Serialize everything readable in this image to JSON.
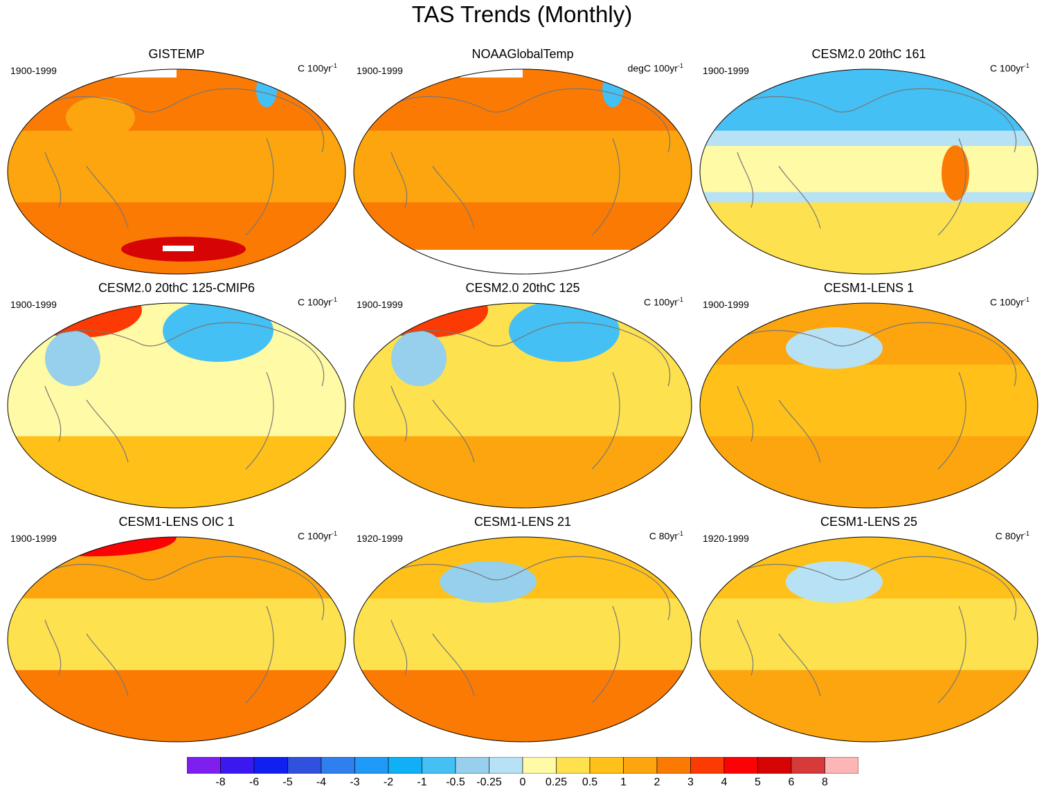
{
  "figure_title": "TAS Trends (Monthly)",
  "chart_data": [
    {
      "type": "heatmap",
      "title": "GISTEMP",
      "period": "1900-1999",
      "units": "C 100yr",
      "units_exp": "-1",
      "pattern": "obs_gis",
      "field": {
        "background": "1",
        "north": "2",
        "south": "2",
        "high_arctic": "2",
        "east_asia": "1",
        "n_atlantic": "-1",
        "antarctic": "5",
        "missing": [
          "top",
          "antarctic-band"
        ]
      }
    },
    {
      "type": "heatmap",
      "title": "NOAAGlobalTemp",
      "period": "1900-1999",
      "units": "degC 100yr",
      "units_exp": "-1",
      "pattern": "obs_noaa",
      "field": {
        "background": "1",
        "north": "2",
        "south": "2",
        "n_atlantic": "-1",
        "missing": [
          "top",
          "antarctica"
        ]
      }
    },
    {
      "type": "heatmap",
      "title": "CESM2.0 20thC 161",
      "period": "1900-1999",
      "units": "C 100yr",
      "units_exp": "-1",
      "pattern": "cool",
      "field": {
        "background": "-0.25",
        "north": "-1",
        "tropics": "0",
        "south": "0.25",
        "s_america": "2"
      }
    },
    {
      "type": "heatmap",
      "title": "CESM2.0 20thC 125-CMIP6",
      "period": "1900-1999",
      "units": "C 100yr",
      "units_exp": "-1",
      "pattern": "mixed_arctic",
      "field": {
        "background": "0",
        "arctic_eurasia": "3",
        "n_america": "-1",
        "south": "0.5",
        "asia": "-0.5"
      }
    },
    {
      "type": "heatmap",
      "title": "CESM2.0 20thC 125",
      "period": "1900-1999",
      "units": "C 100yr",
      "units_exp": "-1",
      "pattern": "mixed_arctic2",
      "field": {
        "background": "0.25",
        "arctic_eurasia": "3",
        "n_america": "-1",
        "south": "1",
        "asia": "-0.5"
      }
    },
    {
      "type": "heatmap",
      "title": "CESM1-LENS 1",
      "period": "1900-1999",
      "units": "C 100yr",
      "units_exp": "-1",
      "pattern": "warm",
      "field": {
        "background": "0.5",
        "north": "1",
        "n_pacific": "-0.25",
        "south": "1"
      }
    },
    {
      "type": "heatmap",
      "title": "CESM1-LENS OIC 1",
      "period": "1900-1999",
      "units": "C 100yr",
      "units_exp": "-1",
      "pattern": "warm_arctic",
      "field": {
        "background": "0.25",
        "arctic": "4",
        "north": "1",
        "south": "2"
      }
    },
    {
      "type": "heatmap",
      "title": "CESM1-LENS 21",
      "period": "1920-1999",
      "units": "C 80yr",
      "units_exp": "-1",
      "pattern": "lens21",
      "field": {
        "background": "0.25",
        "n_pacific": "-0.5",
        "south": "2",
        "north": "0.5"
      }
    },
    {
      "type": "heatmap",
      "title": "CESM1-LENS 25",
      "period": "1920-1999",
      "units": "C 80yr",
      "units_exp": "-1",
      "pattern": "lens25",
      "field": {
        "background": "0.25",
        "n_pacific": "-0.25",
        "south": "1",
        "north": "0.5"
      }
    }
  ],
  "colorbar": {
    "colors": [
      "#7f1fef",
      "#3a18ef",
      "#1020ee",
      "#3050de",
      "#2f80ee",
      "#1f9af8",
      "#10b0f6",
      "#44c0f4",
      "#96d0ec",
      "#b7e2f6",
      "#fffaa5",
      "#fde14f",
      "#fec019",
      "#fca50e",
      "#fb7a04",
      "#fb3a04",
      "#fb0304",
      "#d60404",
      "#d73a3a",
      "#fdb6b6"
    ],
    "labels": [
      "-8",
      "-6",
      "-5",
      "-4",
      "-3",
      "-2",
      "-1",
      "-0.5",
      "-0.25",
      "0",
      "0.25",
      "0.5",
      "1",
      "2",
      "3",
      "4",
      "5",
      "6",
      "8"
    ]
  }
}
